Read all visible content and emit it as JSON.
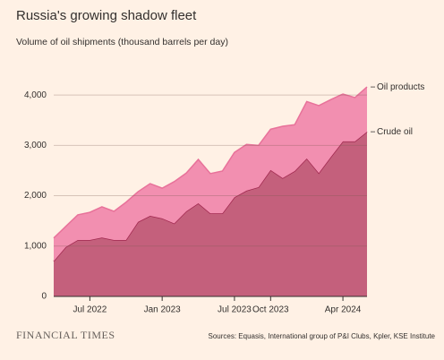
{
  "chart_data": {
    "type": "stacked-area",
    "title": "Russia's growing shadow fleet",
    "subtitle": "Volume of oil shipments (thousand barrels per day)",
    "source": "Sources: Equasis, International group of P&I Clubs, Kpler, KSE Institute",
    "brand": "FINANCIAL TIMES",
    "categories": [
      null,
      null,
      null,
      "Jul 2022",
      null,
      null,
      null,
      null,
      null,
      "Jan 2023",
      null,
      null,
      null,
      null,
      null,
      "Jul 2023",
      null,
      null,
      "Oct 2023",
      null,
      null,
      null,
      null,
      null,
      "Apr 2024",
      null,
      null
    ],
    "series": [
      {
        "name": "Crude oil",
        "color": "#c4607c",
        "line_color": "#a0284f",
        "values": [
          700,
          980,
          1120,
          1120,
          1170,
          1120,
          1120,
          1480,
          1600,
          1550,
          1450,
          1690,
          1850,
          1650,
          1650,
          1970,
          2100,
          2170,
          2510,
          2350,
          2490,
          2740,
          2450,
          2770,
          3080,
          3080,
          3270
        ]
      },
      {
        "name": "Oil products",
        "color": "#f28fb0",
        "line_color": "#e8729a",
        "values": [
          460,
          410,
          500,
          550,
          610,
          570,
          750,
          600,
          640,
          600,
          830,
          760,
          870,
          790,
          840,
          890,
          920,
          830,
          810,
          1030,
          920,
          1130,
          1340,
          1140,
          940,
          870,
          890
        ]
      }
    ],
    "ylim": [
      0,
      4500
    ],
    "yticks": [
      0,
      {
        "value": 1000,
        "label": "1,000"
      },
      {
        "value": 2000,
        "label": "2,000"
      },
      {
        "value": 3000,
        "label": "3,000"
      },
      {
        "value": 4000,
        "label": "4,000"
      }
    ],
    "grid": true
  }
}
